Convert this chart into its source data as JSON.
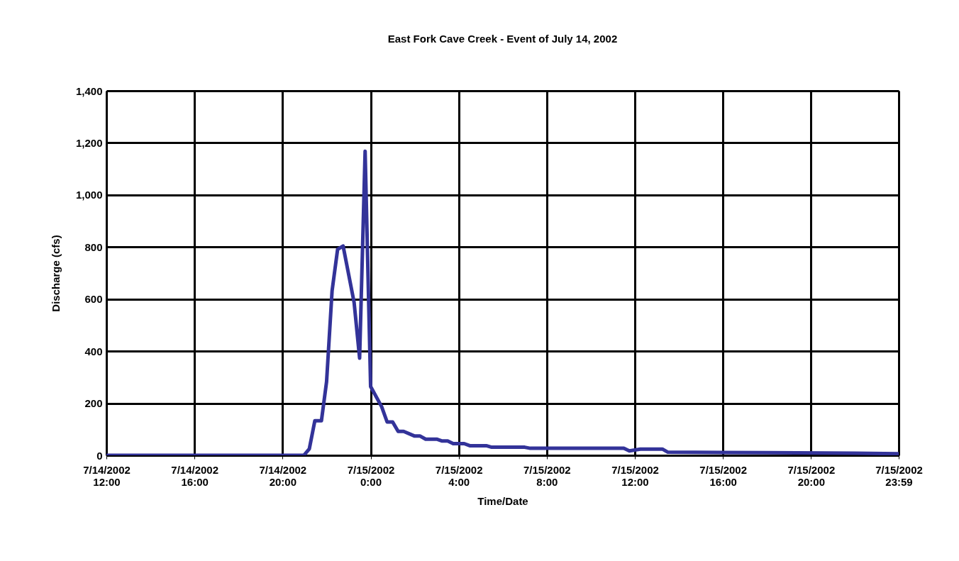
{
  "chart_data": {
    "type": "line",
    "title": "East Fork Cave Creek - Event of July 14, 2002",
    "xlabel": "Time/Date",
    "ylabel": "Discharge (cfs)",
    "x": [
      "2002-07-14T12:00",
      "2002-07-14T20:58",
      "2002-07-14T21:13",
      "2002-07-14T21:28",
      "2002-07-14T21:46",
      "2002-07-14T22:00",
      "2002-07-14T22:15",
      "2002-07-14T22:30",
      "2002-07-14T22:45",
      "2002-07-14T23:15",
      "2002-07-14T23:30",
      "2002-07-14T23:45",
      "2002-07-15T00:00",
      "2002-07-15T00:30",
      "2002-07-15T00:45",
      "2002-07-15T01:00",
      "2002-07-15T01:15",
      "2002-07-15T01:30",
      "2002-07-15T02:00",
      "2002-07-15T02:15",
      "2002-07-15T02:30",
      "2002-07-15T03:00",
      "2002-07-15T03:15",
      "2002-07-15T03:30",
      "2002-07-15T03:45",
      "2002-07-15T04:15",
      "2002-07-15T04:30",
      "2002-07-15T05:15",
      "2002-07-15T05:30",
      "2002-07-15T07:00",
      "2002-07-15T07:15",
      "2002-07-15T11:30",
      "2002-07-15T11:45",
      "2002-07-15T12:15",
      "2002-07-15T13:15",
      "2002-07-15T13:30",
      "2002-07-15T18:00",
      "2002-07-15T22:00",
      "2002-07-15T23:59"
    ],
    "series": [
      {
        "color": "#333399",
        "values": [
          0,
          0,
          25,
          133,
          133,
          283,
          632,
          791,
          804,
          587,
          373,
          1168,
          264,
          187,
          128,
          128,
          92,
          92,
          74,
          74,
          62,
          62,
          55,
          55,
          45,
          45,
          37,
          37,
          31,
          31,
          27,
          27,
          17,
          24,
          24,
          12,
          10,
          8,
          6
        ]
      }
    ],
    "xlim": [
      "2002-07-14T12:00",
      "2002-07-15T23:59"
    ],
    "xticks": [
      {
        "value": "2002-07-14T12:00",
        "label": "7/14/2002 12:00"
      },
      {
        "value": "2002-07-14T16:00",
        "label": "7/14/2002 16:00"
      },
      {
        "value": "2002-07-14T20:00",
        "label": "7/14/2002 20:00"
      },
      {
        "value": "2002-07-15T00:00",
        "label": "7/15/2002 0:00"
      },
      {
        "value": "2002-07-15T04:00",
        "label": "7/15/2002 4:00"
      },
      {
        "value": "2002-07-15T08:00",
        "label": "7/15/2002 8:00"
      },
      {
        "value": "2002-07-15T12:00",
        "label": "7/15/2002 12:00"
      },
      {
        "value": "2002-07-15T16:00",
        "label": "7/15/2002 16:00"
      },
      {
        "value": "2002-07-15T20:00",
        "label": "7/15/2002 20:00"
      },
      {
        "value": "2002-07-15T23:59",
        "label": "7/15/2002 23:59"
      }
    ],
    "ylim": [
      0,
      1400
    ],
    "yticks": [
      {
        "value": 0,
        "label": "0"
      },
      {
        "value": 200,
        "label": "200"
      },
      {
        "value": 400,
        "label": "400"
      },
      {
        "value": 600,
        "label": "600"
      },
      {
        "value": 800,
        "label": "800"
      },
      {
        "value": 1000,
        "label": "1,000"
      },
      {
        "value": 1200,
        "label": "1,200"
      },
      {
        "value": 1400,
        "label": "1,400"
      }
    ],
    "grid": true,
    "line_style": "solid"
  }
}
